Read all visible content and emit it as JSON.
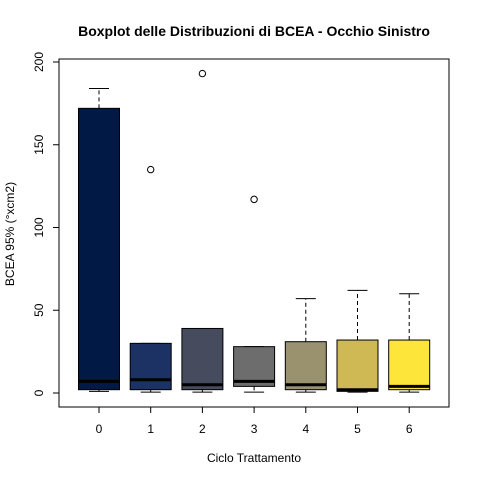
{
  "chart_data": {
    "type": "boxplot",
    "title": "Boxplot delle Distribuzioni di BCEA - Occhio Sinistro",
    "xlabel": "Ciclo Trattamento",
    "ylabel": "BCEA 95% (°xcm2)",
    "ylim": [
      0,
      200
    ],
    "yticks": [
      0,
      50,
      100,
      150,
      200
    ],
    "categories": [
      "0",
      "1",
      "2",
      "3",
      "4",
      "5",
      "6"
    ],
    "colors": [
      "#001A45",
      "#1C3164",
      "#474B5E",
      "#6D6D6D",
      "#9A916E",
      "#CFB955",
      "#FDE53A"
    ],
    "boxes": [
      {
        "lower_whisker": 1,
        "q1": 2,
        "median": 7,
        "q3": 172,
        "upper_whisker": 184,
        "outliers": []
      },
      {
        "lower_whisker": 0.5,
        "q1": 2,
        "median": 8,
        "q3": 30,
        "upper_whisker": 30,
        "outliers": [
          135
        ]
      },
      {
        "lower_whisker": 0.5,
        "q1": 2,
        "median": 5,
        "q3": 39,
        "upper_whisker": 39,
        "outliers": [
          193
        ]
      },
      {
        "lower_whisker": 0.5,
        "q1": 4,
        "median": 7,
        "q3": 28,
        "upper_whisker": 28,
        "outliers": [
          117
        ]
      },
      {
        "lower_whisker": 0.5,
        "q1": 2,
        "median": 5,
        "q3": 31,
        "upper_whisker": 57,
        "outliers": []
      },
      {
        "lower_whisker": 0.5,
        "q1": 1,
        "median": 2,
        "q3": 32,
        "upper_whisker": 62,
        "outliers": []
      },
      {
        "lower_whisker": 0.5,
        "q1": 2,
        "median": 4,
        "q3": 32,
        "upper_whisker": 60,
        "outliers": []
      }
    ]
  }
}
